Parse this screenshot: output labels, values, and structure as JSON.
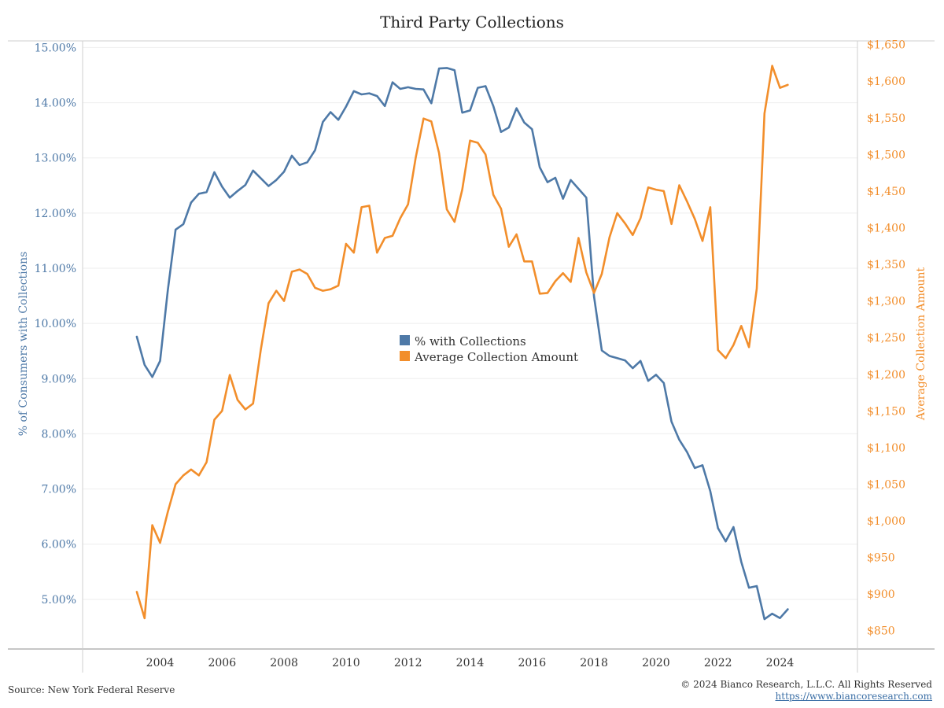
{
  "title": "Third Party Collections",
  "source_text": "Source: New York Federal Reserve",
  "copyright_text": "© 2024 Bianco Research, L.L.C. All Rights Reserved",
  "copyright_url": "https://www.biancoresearch.com",
  "chart_data": {
    "type": "line",
    "title": "Third Party Collections",
    "x_ticks": [
      "2004",
      "2006",
      "2008",
      "2010",
      "2012",
      "2014",
      "2016",
      "2018",
      "2020",
      "2022",
      "2024"
    ],
    "x_tick_values": [
      2004,
      2006,
      2008,
      2010,
      2012,
      2014,
      2016,
      2018,
      2020,
      2022,
      2024
    ],
    "xlim": [
      2001.5,
      2026.5
    ],
    "left_axis": {
      "label": "% of Consumers with Collections",
      "ylim": [
        4.1,
        15.12
      ],
      "ticks": [
        "5.00%",
        "6.00%",
        "7.00%",
        "8.00%",
        "9.00%",
        "10.00%",
        "11.00%",
        "12.00%",
        "13.00%",
        "14.00%",
        "15.00%"
      ],
      "tick_values": [
        5,
        6,
        7,
        8,
        9,
        10,
        11,
        12,
        13,
        14,
        15
      ],
      "color": "#4e79a7"
    },
    "right_axis": {
      "label": "Average Collection Amount",
      "ylim": [
        825,
        1655
      ],
      "ticks": [
        "$850",
        "$900",
        "$950",
        "$1,000",
        "$1,050",
        "$1,100",
        "$1,150",
        "$1,200",
        "$1,250",
        "$1,300",
        "$1,350",
        "$1,400",
        "$1,450",
        "$1,500",
        "$1,550",
        "$1,600",
        "$1,650"
      ],
      "tick_values": [
        850,
        900,
        950,
        1000,
        1050,
        1100,
        1150,
        1200,
        1250,
        1300,
        1350,
        1400,
        1450,
        1500,
        1550,
        1600,
        1650
      ],
      "color": "#f28e2b"
    },
    "legend": {
      "placement": "center"
    },
    "series": [
      {
        "name": "% with Collections",
        "axis": "left",
        "color": "#4e79a7",
        "x": [
          2003.25,
          2003.5,
          2003.75,
          2004.0,
          2004.25,
          2004.5,
          2004.75,
          2005.0,
          2005.25,
          2005.5,
          2005.75,
          2006.0,
          2006.25,
          2006.5,
          2006.75,
          2007.0,
          2007.25,
          2007.5,
          2007.75,
          2008.0,
          2008.25,
          2008.5,
          2008.75,
          2009.0,
          2009.25,
          2009.5,
          2009.75,
          2010.0,
          2010.25,
          2010.5,
          2010.75,
          2011.0,
          2011.25,
          2011.5,
          2011.75,
          2012.0,
          2012.25,
          2012.5,
          2012.75,
          2013.0,
          2013.25,
          2013.5,
          2013.75,
          2014.0,
          2014.25,
          2014.5,
          2014.75,
          2015.0,
          2015.25,
          2015.5,
          2015.75,
          2016.0,
          2016.25,
          2016.5,
          2016.75,
          2017.0,
          2017.25,
          2017.5,
          2017.75,
          2018.0,
          2018.25,
          2018.5,
          2018.75,
          2019.0,
          2019.25,
          2019.5,
          2019.75,
          2020.0,
          2020.25,
          2020.5,
          2020.75,
          2021.0,
          2021.25,
          2021.5,
          2021.75,
          2022.0,
          2022.25,
          2022.5,
          2022.75,
          2023.0,
          2023.25,
          2023.5,
          2023.75,
          2024.0,
          2024.25
        ],
        "values": [
          9.76,
          9.25,
          9.03,
          9.32,
          10.6,
          11.7,
          11.8,
          12.19,
          12.35,
          12.38,
          12.74,
          12.48,
          12.28,
          12.4,
          12.51,
          12.77,
          12.63,
          12.49,
          12.6,
          12.75,
          13.04,
          12.87,
          12.92,
          13.14,
          13.65,
          13.83,
          13.69,
          13.93,
          14.21,
          14.15,
          14.17,
          14.12,
          13.94,
          14.37,
          14.25,
          14.28,
          14.25,
          14.24,
          13.99,
          14.62,
          14.63,
          14.59,
          13.82,
          13.86,
          14.27,
          14.3,
          13.94,
          13.47,
          13.55,
          13.9,
          13.64,
          13.52,
          12.83,
          12.56,
          12.64,
          12.26,
          12.6,
          12.44,
          12.28,
          10.49,
          9.51,
          9.41,
          9.37,
          9.33,
          9.19,
          9.32,
          8.96,
          9.07,
          8.92,
          8.22,
          7.89,
          7.67,
          7.38,
          7.43,
          6.96,
          6.29,
          6.05,
          6.31,
          5.68,
          5.21,
          5.24,
          4.64,
          4.74,
          4.66,
          4.82
        ]
      },
      {
        "name": "Average Collection Amount",
        "axis": "right",
        "color": "#f28e2b",
        "x": [
          2003.25,
          2003.5,
          2003.75,
          2004.0,
          2004.25,
          2004.5,
          2004.75,
          2005.0,
          2005.25,
          2005.5,
          2005.75,
          2006.0,
          2006.25,
          2006.5,
          2006.75,
          2007.0,
          2007.25,
          2007.5,
          2007.75,
          2008.0,
          2008.25,
          2008.5,
          2008.75,
          2009.0,
          2009.25,
          2009.5,
          2009.75,
          2010.0,
          2010.25,
          2010.5,
          2010.75,
          2011.0,
          2011.25,
          2011.5,
          2011.75,
          2012.0,
          2012.25,
          2012.5,
          2012.75,
          2013.0,
          2013.25,
          2013.5,
          2013.75,
          2014.0,
          2014.25,
          2014.5,
          2014.75,
          2015.0,
          2015.25,
          2015.5,
          2015.75,
          2016.0,
          2016.25,
          2016.5,
          2016.75,
          2017.0,
          2017.25,
          2017.5,
          2017.75,
          2018.0,
          2018.25,
          2018.5,
          2018.75,
          2019.0,
          2019.25,
          2019.5,
          2019.75,
          2020.0,
          2020.25,
          2020.5,
          2020.75,
          2021.0,
          2021.25,
          2021.5,
          2021.75,
          2022.0,
          2022.25,
          2022.5,
          2022.75,
          2023.0,
          2023.25,
          2023.5,
          2023.75,
          2024.0,
          2024.25
        ],
        "values": [
          903,
          867,
          994,
          970,
          1012,
          1050,
          1062,
          1070,
          1062,
          1080,
          1138,
          1150,
          1199,
          1165,
          1152,
          1160,
          1234,
          1297,
          1314,
          1300,
          1340,
          1343,
          1337,
          1318,
          1314,
          1316,
          1321,
          1378,
          1366,
          1428,
          1430,
          1366,
          1386,
          1389,
          1413,
          1432,
          1496,
          1549,
          1545,
          1502,
          1425,
          1408,
          1452,
          1519,
          1516,
          1500,
          1445,
          1426,
          1374,
          1391,
          1354,
          1354,
          1310,
          1311,
          1327,
          1338,
          1326,
          1386,
          1339,
          1311,
          1337,
          1387,
          1420,
          1406,
          1390,
          1413,
          1455,
          1452,
          1450,
          1405,
          1458,
          1436,
          1412,
          1382,
          1428,
          1233,
          1222,
          1240,
          1266,
          1237,
          1317,
          1556,
          1621,
          1591,
          1595
        ]
      }
    ]
  }
}
